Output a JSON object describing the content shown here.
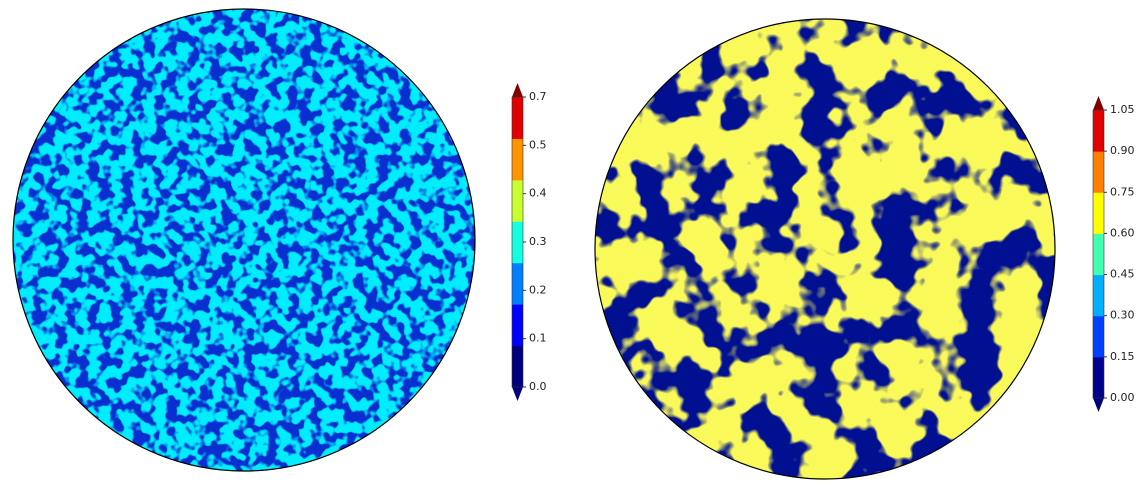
{
  "maps": [
    {
      "colorbar": {
        "colors": [
          "#00007f",
          "#0000ff",
          "#0080ff",
          "#15ffe1",
          "#c8ff2e",
          "#ff9400",
          "#e00000"
        ],
        "under": "#00007f",
        "over": "#800000",
        "ticks": [
          {
            "value": 0.0,
            "label": "0.0"
          },
          0.1,
          0.2,
          0.3,
          0.4,
          0.5,
          0.7
        ]
      }
    },
    {
      "colorbar": {
        "colors": [
          "#00008f",
          "#0040ff",
          "#00b0ff",
          "#40ffb0",
          "#ffff00",
          "#ff8000",
          "#e00000"
        ],
        "under": "#00007f",
        "over": "#800000",
        "ticks": [
          {
            "value": 0,
            "label": "0.00"
          },
          {
            "value": 0.15,
            "label": "0.15"
          },
          {
            "value": 0.3,
            "label": "0.30"
          },
          {
            "value": 0.45,
            "label": "0.45"
          },
          {
            "value": 0.6,
            "label": "0.60"
          },
          {
            "value": 0.75,
            "label": "0.75"
          },
          {
            "value": 0.9,
            "label": "0.90"
          },
          {
            "value": 1.05,
            "label": "1.05"
          }
        ]
      }
    }
  ]
}
